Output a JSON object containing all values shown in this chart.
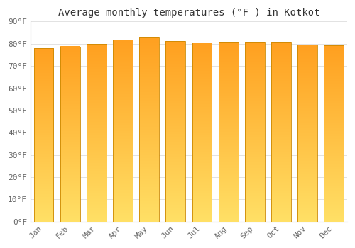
{
  "title": "Average monthly temperatures (°F ) in Kotkot",
  "categories": [
    "Jan",
    "Feb",
    "Mar",
    "Apr",
    "May",
    "Jun",
    "Jul",
    "Aug",
    "Sep",
    "Oct",
    "Nov",
    "Dec"
  ],
  "values": [
    78.1,
    78.8,
    80.0,
    81.7,
    83.0,
    81.3,
    80.6,
    80.8,
    80.8,
    80.8,
    79.7,
    79.2
  ],
  "grad_bottom": "#FFE066",
  "grad_top": "#FFA020",
  "bar_edge_color": "#CC8800",
  "background_color": "#FFFFFF",
  "grid_color": "#DDDDDD",
  "ylim": [
    0,
    90
  ],
  "yticks": [
    0,
    10,
    20,
    30,
    40,
    50,
    60,
    70,
    80,
    90
  ],
  "ytick_labels": [
    "0°F",
    "10°F",
    "20°F",
    "30°F",
    "40°F",
    "50°F",
    "60°F",
    "70°F",
    "80°F",
    "90°F"
  ],
  "title_fontsize": 10,
  "tick_fontsize": 8,
  "font_family": "monospace",
  "bar_width": 0.75
}
